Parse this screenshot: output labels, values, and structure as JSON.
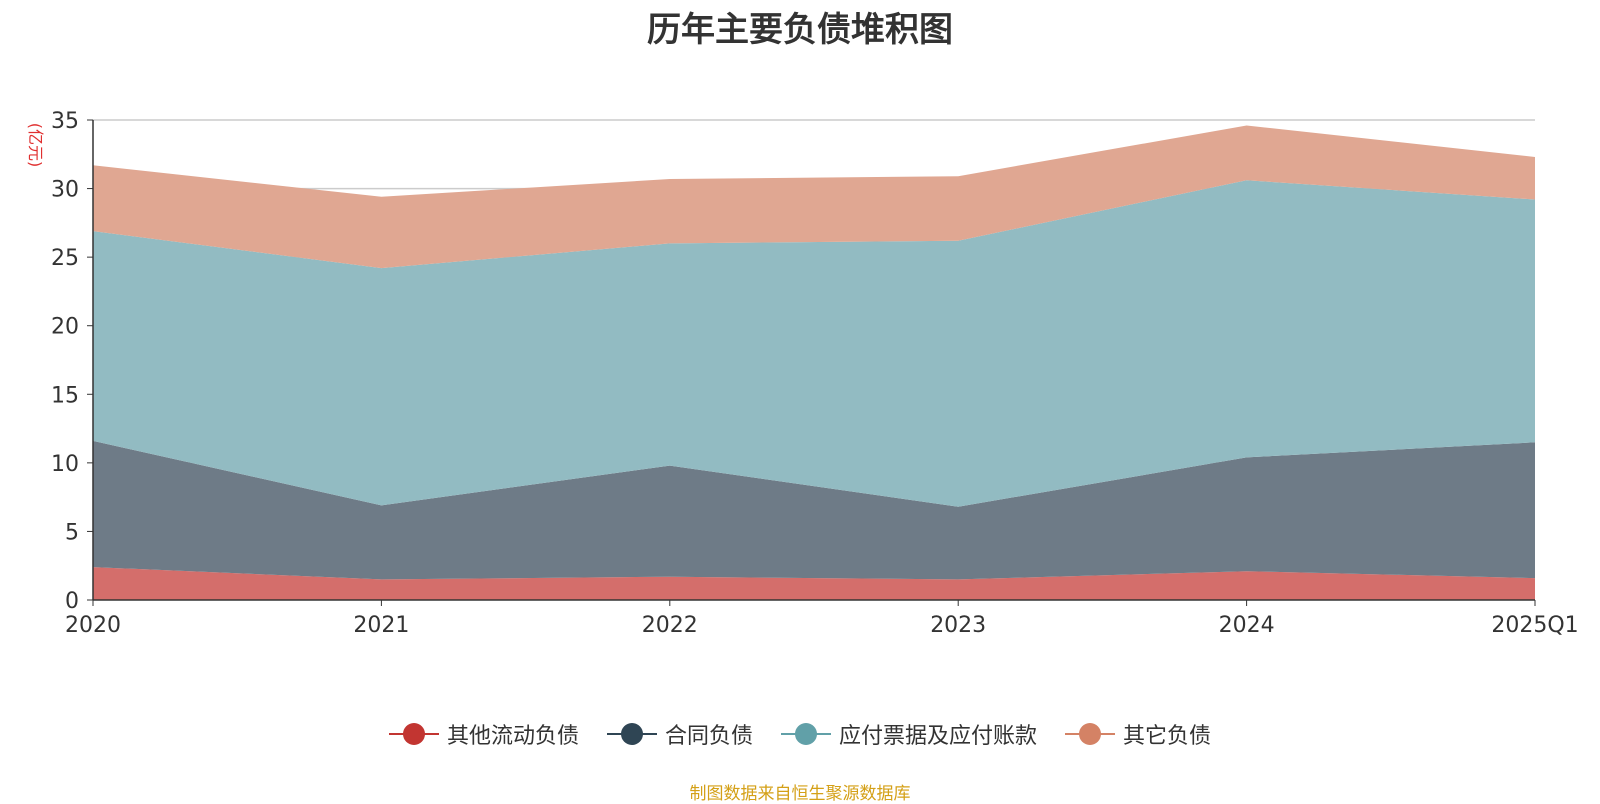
{
  "chart_data": {
    "type": "area",
    "stacked": true,
    "title": "历年主要负债堆积图",
    "unit_label": "(亿元)",
    "unit_color": "#e03030",
    "categories": [
      "2020",
      "2021",
      "2022",
      "2023",
      "2024",
      "2025Q1"
    ],
    "ylim": [
      0,
      35
    ],
    "yticks": [
      0,
      5,
      10,
      15,
      20,
      25,
      30,
      35
    ],
    "grid": true,
    "legend_position": "bottom",
    "series": [
      {
        "name": "其他流动负债",
        "values": [
          2.4,
          1.5,
          1.7,
          1.5,
          2.1,
          1.6
        ],
        "color": "#c23531",
        "fill": "#d46e6b"
      },
      {
        "name": "合同负债",
        "values": [
          9.2,
          5.4,
          8.1,
          5.3,
          8.3,
          9.9
        ],
        "color": "#2f4554",
        "fill": "#6e7b87"
      },
      {
        "name": "应付票据及应付账款",
        "values": [
          15.3,
          17.3,
          16.2,
          19.4,
          20.2,
          17.7
        ],
        "color": "#61a0a8",
        "fill": "#92bbc2"
      },
      {
        "name": "其它负债",
        "values": [
          4.8,
          5.2,
          4.7,
          4.7,
          4.0,
          3.1
        ],
        "color": "#d48265",
        "fill": "#e0a792"
      }
    ]
  },
  "source_text": "制图数据来自恒生聚源数据库"
}
